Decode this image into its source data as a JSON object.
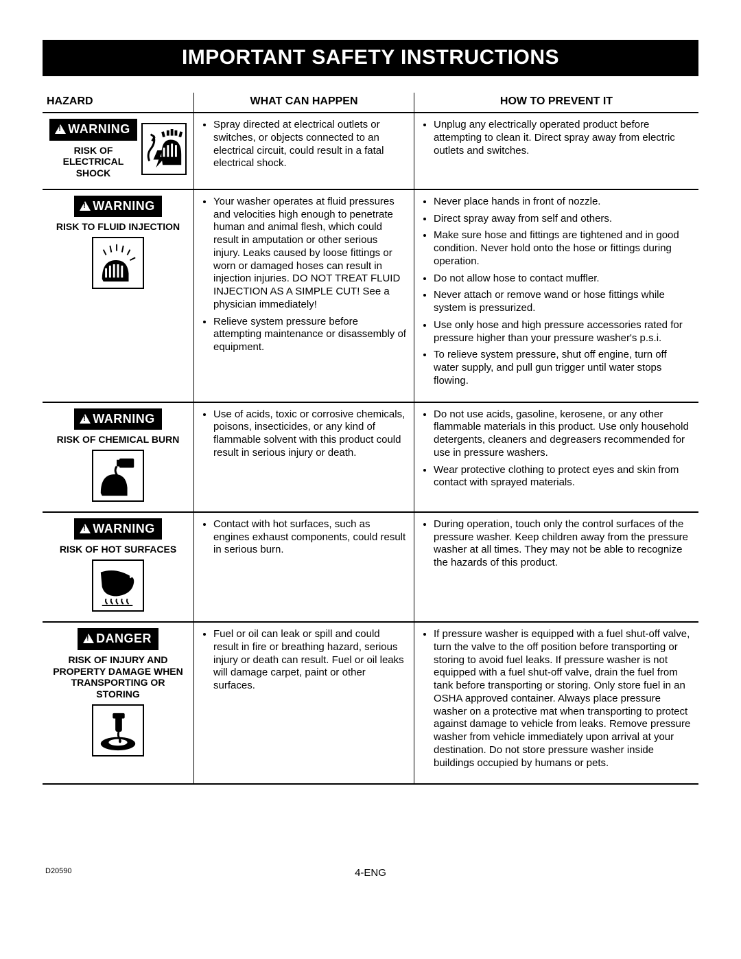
{
  "title": "IMPORTANT SAFETY INSTRUCTIONS",
  "headers": {
    "hazard": "HAZARD",
    "happen": "WHAT CAN HAPPEN",
    "prevent": "HOW TO PREVENT IT"
  },
  "rows": [
    {
      "badge": "WARNING",
      "label": "RISK OF ELECTRICAL SHOCK",
      "icon": "shock",
      "inline_icon": true,
      "happen": [
        "Spray directed at electrical outlets or switches, or objects connected to an electrical circuit, could result in a fatal electrical shock."
      ],
      "prevent": [
        "Unplug any electrically operated product before attempting to clean it. Direct spray away from electric outlets and switches."
      ]
    },
    {
      "badge": "WARNING",
      "label": "RISK TO FLUID INJECTION",
      "icon": "injection",
      "happen": [
        "Your washer operates at fluid pressures and velocities high enough to penetrate human and animal flesh, which could result in amputation or other serious  injury.  Leaks caused by loose fittings or worn or damaged hoses can result in injection injuries. DO NOT TREAT FLUID INJECTION AS A SIMPLE CUT!  See a physician immediately!",
        "Relieve system pressure before attempting maintenance or disassembly of equipment."
      ],
      "prevent": [
        "Never place hands in front of nozzle.",
        "Direct spray away from self and others.",
        "Make sure hose and fittings are tightened and in good condition.  Never hold onto the hose or fittings during operation.",
        "Do not allow hose to contact muffler.",
        "Never attach or remove wand or hose fittings while system is pressurized.",
        "Use only hose and high pressure accessories rated for pressure higher than your pressure washer's p.s.i.",
        "To relieve system pressure, shut off  engine, turn off water supply, and pull gun trigger until water stops flowing."
      ]
    },
    {
      "badge": "WARNING",
      "label": "RISK OF CHEMICAL BURN",
      "icon": "chemical",
      "happen": [
        "Use of acids, toxic or corrosive chemicals, poisons, insecticides, or any kind of flammable solvent with this product could result in serious injury or death."
      ],
      "prevent": [
        "Do not use acids, gasoline, kerosene, or any other flammable materials in this product. Use only household detergents, cleaners and degreasers recommended for use in pressure washers.",
        "Wear protective clothing to protect eyes and skin from contact with sprayed materials."
      ]
    },
    {
      "badge": "WARNING",
      "label": "RISK OF HOT SURFACES",
      "icon": "hot",
      "happen": [
        "Contact with hot surfaces, such as engines exhaust components, could result in serious burn."
      ],
      "prevent": [
        "During operation, touch only the control surfaces of the pressure washer.  Keep children away from the pressure washer at all times. They may not be able to recognize the hazards of this product."
      ]
    },
    {
      "badge": "DANGER",
      "label": "RISK OF INJURY AND PROPERTY DAMAGE WHEN TRANSPORTING OR STORING",
      "icon": "transport",
      "happen": [
        "Fuel or oil can leak or spill and could result in fire or breathing hazard, serious injury or death can result. Fuel or oil leaks will damage carpet, paint or other surfaces."
      ],
      "prevent": [
        "If pressure washer is equipped with a fuel shut-off valve, turn the valve to the off position before transporting or storing to avoid fuel leaks. If pressure washer is not equipped with a fuel shut-off valve, drain the fuel from tank before transporting or storing. Only store fuel in an OSHA approved container. Always place pressure washer on a protective mat when transporting to protect against damage to vehicle from leaks. Remove pressure washer from vehicle immediately upon arrival at your destination. Do not store pressure washer inside buildings occupied by humans or pets."
      ]
    }
  ],
  "footer": {
    "left": "D20590",
    "center": "4-ENG"
  }
}
